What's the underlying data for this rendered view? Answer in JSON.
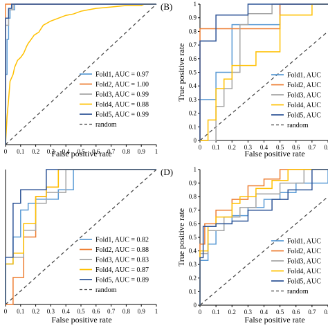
{
  "chart_data": [
    {
      "panel_label": "",
      "type": "line",
      "xlabel": "False positive rate",
      "ylabel": "",
      "xlim": [
        0,
        1
      ],
      "ylim": [
        0,
        1
      ],
      "xticks": [
        "0",
        "0.1",
        "0.2",
        "0.3",
        "0.4",
        "0.5",
        "0.6",
        "0.7",
        "0.8",
        "0.9",
        "1"
      ],
      "yticks": [],
      "legend_position": "bottom-right",
      "baseline_label": "random",
      "series": [
        {
          "name": "Fold1, AUC = 0.97",
          "color": "#5b9bd5",
          "x": [
            0,
            0,
            0.01,
            0.01,
            0.02,
            0.02,
            0.03,
            0.03,
            0.06,
            0.06,
            1
          ],
          "y": [
            0,
            0.5,
            0.5,
            0.75,
            0.75,
            0.9,
            0.9,
            0.96,
            0.96,
            1,
            1
          ]
        },
        {
          "name": "Fold2, AUC = 1.00",
          "color": "#ed7d31",
          "x": [
            0,
            0,
            1
          ],
          "y": [
            0,
            1,
            1
          ]
        },
        {
          "name": "Fold3, AUC = 0.99",
          "color": "#a5a5a5",
          "x": [
            0,
            0,
            0.02,
            0.02,
            0.05,
            0.05,
            1
          ],
          "y": [
            0,
            0.85,
            0.85,
            0.96,
            0.96,
            1,
            1
          ]
        },
        {
          "name": "Fold4, AUC = 0.88",
          "color": "#ffc000",
          "x": [
            0,
            0.01,
            0.02,
            0.03,
            0.05,
            0.06,
            0.08,
            0.1,
            0.12,
            0.14,
            0.15,
            0.17,
            0.19,
            0.22,
            0.25,
            0.3,
            0.35,
            0.4,
            0.45,
            0.5,
            0.55,
            0.6,
            0.7,
            0.8,
            0.9,
            0.92,
            1
          ],
          "y": [
            0,
            0.2,
            0.32,
            0.45,
            0.5,
            0.55,
            0.6,
            0.62,
            0.65,
            0.7,
            0.72,
            0.75,
            0.78,
            0.8,
            0.85,
            0.88,
            0.9,
            0.92,
            0.93,
            0.95,
            0.96,
            0.97,
            0.98,
            0.99,
            0.99,
            1,
            1
          ]
        },
        {
          "name": "Fold5, AUC = 0.99",
          "color": "#2f5597",
          "x": [
            0,
            0,
            0.02,
            0.02,
            0.04,
            0.04,
            1
          ],
          "y": [
            0,
            0.9,
            0.9,
            0.97,
            0.97,
            1,
            1
          ]
        }
      ]
    },
    {
      "panel_label": "(B)",
      "type": "line",
      "xlabel": "False positive rate",
      "ylabel": "True positive rate",
      "xlim": [
        0,
        0.8
      ],
      "ylim": [
        0,
        1
      ],
      "xticks": [
        "0",
        "0.1",
        "0.2",
        "0.3",
        "0.4",
        "0.5",
        "0.6",
        "0.7",
        "0.8"
      ],
      "yticks": [
        "0",
        "0.1",
        "0.2",
        "0.3",
        "0.4",
        "0.5",
        "0.6",
        "0.7",
        "0.8",
        "0.9",
        "1"
      ],
      "legend_position": "bottom-right",
      "baseline_label": "random",
      "series": [
        {
          "name": "Fold1, AUC",
          "color": "#5b9bd5",
          "x": [
            0,
            0,
            0.1,
            0.1,
            0.2,
            0.2,
            0.5,
            0.5,
            1
          ],
          "y": [
            0,
            0.3,
            0.3,
            0.5,
            0.5,
            0.85,
            0.85,
            1,
            1
          ]
        },
        {
          "name": "Fold2, AUC",
          "color": "#ed7d31",
          "x": [
            0,
            0,
            0.5,
            0.5,
            1
          ],
          "y": [
            0,
            0.82,
            0.82,
            1,
            1
          ]
        },
        {
          "name": "Fold3, AUC",
          "color": "#a5a5a5",
          "x": [
            0,
            0.1,
            0.1,
            0.15,
            0.15,
            0.2,
            0.2,
            0.25,
            0.25,
            0.3,
            0.3,
            0.45,
            0.45,
            1
          ],
          "y": [
            0,
            0,
            0.25,
            0.25,
            0.38,
            0.38,
            0.5,
            0.5,
            0.85,
            0.85,
            0.93,
            0.93,
            1,
            1
          ]
        },
        {
          "name": "Fold4, AUC",
          "color": "#ffc000",
          "x": [
            0,
            0.05,
            0.05,
            0.1,
            0.1,
            0.15,
            0.15,
            0.2,
            0.2,
            0.35,
            0.35,
            0.5,
            0.5,
            0.7,
            0.7,
            1
          ],
          "y": [
            0,
            0,
            0.15,
            0.15,
            0.38,
            0.38,
            0.45,
            0.45,
            0.55,
            0.55,
            0.65,
            0.65,
            0.92,
            0.92,
            1,
            1
          ]
        },
        {
          "name": "Fold5, AUC",
          "color": "#2f5597",
          "x": [
            0,
            0,
            0.1,
            0.1,
            0.2,
            0.2,
            0.3,
            0.3,
            1
          ],
          "y": [
            0,
            0.73,
            0.73,
            0.92,
            0.92,
            0.92,
            0.92,
            1,
            1
          ]
        }
      ]
    },
    {
      "panel_label": "",
      "type": "line",
      "xlabel": "False positive rate",
      "ylabel": "",
      "xlim": [
        0,
        1
      ],
      "ylim": [
        0,
        1
      ],
      "xticks": [
        "0",
        "0.1",
        "0.2",
        "0.3",
        "0.4",
        "0.5",
        "0.6",
        "0.7",
        "0.8",
        "0.9",
        "1"
      ],
      "yticks": [],
      "legend_position": "bottom-right",
      "baseline_label": "random",
      "series": [
        {
          "name": "Fold1, AUC = 0.82",
          "color": "#5b9bd5",
          "x": [
            0,
            0,
            0.05,
            0.05,
            0.1,
            0.1,
            0.15,
            0.15,
            0.2,
            0.2,
            0.35,
            0.35,
            0.45,
            0.45,
            1
          ],
          "y": [
            0,
            0.3,
            0.3,
            0.5,
            0.5,
            0.7,
            0.7,
            0.75,
            0.75,
            0.78,
            0.78,
            0.85,
            0.85,
            1,
            1
          ]
        },
        {
          "name": "Fold2, AUC = 0.88",
          "color": "#ed7d31",
          "x": [
            0,
            0.05,
            0.05,
            0.12,
            0.12,
            0.2,
            0.2,
            0.27,
            0.27,
            0.35,
            0.35,
            1
          ],
          "y": [
            0,
            0,
            0.2,
            0.2,
            0.5,
            0.5,
            0.8,
            0.8,
            0.87,
            0.87,
            1,
            1
          ]
        },
        {
          "name": "Fold3, AUC = 0.83",
          "color": "#a5a5a5",
          "x": [
            0,
            0,
            0.12,
            0.12,
            0.2,
            0.2,
            0.27,
            0.27,
            0.4,
            0.4,
            1
          ],
          "y": [
            0,
            0.35,
            0.35,
            0.55,
            0.55,
            0.75,
            0.75,
            0.83,
            0.83,
            1,
            1
          ]
        },
        {
          "name": "Fold4, AUC = 0.87",
          "color": "#ffc000",
          "x": [
            0,
            0,
            0.05,
            0.05,
            0.12,
            0.12,
            0.2,
            0.2,
            0.27,
            0.27,
            0.35,
            0.35,
            1
          ],
          "y": [
            0,
            0.3,
            0.3,
            0.38,
            0.38,
            0.6,
            0.6,
            0.8,
            0.8,
            0.87,
            0.87,
            1,
            1
          ]
        },
        {
          "name": "Fold5, AUC = 0.89",
          "color": "#2f5597",
          "x": [
            0,
            0,
            0.05,
            0.05,
            0.1,
            0.1,
            0.2,
            0.2,
            0.27,
            0.27,
            1
          ],
          "y": [
            0,
            0.35,
            0.35,
            0.75,
            0.75,
            0.85,
            0.85,
            0.85,
            0.85,
            1,
            1
          ]
        }
      ]
    },
    {
      "panel_label": "(D)",
      "type": "line",
      "xlabel": "False positive rate",
      "ylabel": "True positive rate",
      "xlim": [
        0,
        0.8
      ],
      "ylim": [
        0,
        1
      ],
      "xticks": [
        "0",
        "0.1",
        "0.2",
        "0.3",
        "0.4",
        "0.5",
        "0.6",
        "0.7",
        "0.8"
      ],
      "yticks": [
        "0",
        "0.1",
        "0.2",
        "0.3",
        "0.4",
        "0.5",
        "0.6",
        "0.7",
        "0.8",
        "0.9",
        "1"
      ],
      "legend_position": "bottom-right",
      "baseline_label": "random",
      "series": [
        {
          "name": "Fold1, AUC",
          "color": "#5b9bd5",
          "x": [
            0,
            0,
            0.05,
            0.05,
            0.1,
            0.1,
            0.15,
            0.15,
            0.2,
            0.2,
            0.3,
            0.3,
            0.4,
            0.4,
            0.5,
            0.5,
            0.6,
            0.6,
            0.8,
            0.8,
            1
          ],
          "y": [
            0,
            0.33,
            0.33,
            0.45,
            0.45,
            0.55,
            0.55,
            0.6,
            0.6,
            0.66,
            0.66,
            0.72,
            0.72,
            0.78,
            0.78,
            0.83,
            0.83,
            0.9,
            0.9,
            1,
            1
          ]
        },
        {
          "name": "Fold2, AUC",
          "color": "#ed7d31",
          "x": [
            0,
            0,
            0.03,
            0.03,
            0.1,
            0.1,
            0.2,
            0.2,
            0.3,
            0.3,
            0.4,
            0.4,
            0.5,
            0.5,
            1
          ],
          "y": [
            0,
            0.45,
            0.45,
            0.6,
            0.6,
            0.7,
            0.7,
            0.78,
            0.78,
            0.88,
            0.88,
            0.93,
            0.93,
            1,
            1
          ]
        },
        {
          "name": "Fold3, AUC",
          "color": "#a5a5a5",
          "x": [
            0,
            0,
            0.05,
            0.05,
            0.15,
            0.15,
            0.25,
            0.25,
            0.35,
            0.35,
            0.5,
            0.5,
            0.65,
            0.65,
            1
          ],
          "y": [
            0,
            0.38,
            0.38,
            0.55,
            0.55,
            0.65,
            0.65,
            0.72,
            0.72,
            0.82,
            0.82,
            0.9,
            0.9,
            1,
            1
          ]
        },
        {
          "name": "Fold4, AUC",
          "color": "#ffc000",
          "x": [
            0,
            0,
            0.05,
            0.05,
            0.1,
            0.1,
            0.2,
            0.2,
            0.25,
            0.25,
            0.35,
            0.35,
            0.45,
            0.45,
            0.55,
            0.55,
            1
          ],
          "y": [
            0,
            0.4,
            0.4,
            0.58,
            0.58,
            0.65,
            0.65,
            0.75,
            0.75,
            0.8,
            0.8,
            0.86,
            0.86,
            0.92,
            0.92,
            1,
            1
          ]
        },
        {
          "name": "Fold5, AUC",
          "color": "#2f5597",
          "x": [
            0,
            0,
            0.02,
            0.02,
            0.1,
            0.1,
            0.2,
            0.2,
            0.3,
            0.3,
            0.45,
            0.45,
            0.55,
            0.55,
            0.7,
            0.7,
            1
          ],
          "y": [
            0,
            0.35,
            0.35,
            0.58,
            0.58,
            0.6,
            0.6,
            0.62,
            0.62,
            0.7,
            0.7,
            0.78,
            0.78,
            0.85,
            0.85,
            1,
            1
          ]
        }
      ]
    }
  ]
}
